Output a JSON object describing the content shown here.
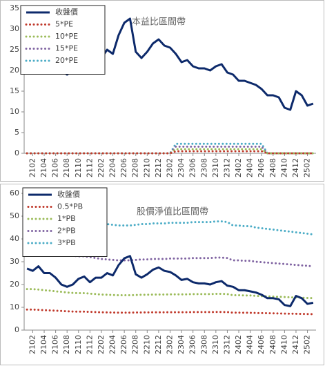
{
  "chart_data": [
    {
      "type": "line",
      "title": "本益比區間帶",
      "categories": [
        null,
        "2102",
        null,
        "2104",
        null,
        "2106",
        null,
        "2108",
        null,
        "2110",
        null,
        "2112",
        null,
        "2202",
        null,
        "2204",
        null,
        "2206",
        null,
        "2208",
        null,
        "2210",
        null,
        "2212",
        null,
        "2302",
        null,
        "2304",
        null,
        "2306",
        null,
        "2308",
        null,
        "2310",
        null,
        "2312",
        null,
        "2402",
        null,
        "2404",
        null,
        "2406",
        null,
        "2408",
        null,
        "2410",
        null,
        "2412",
        null,
        "2502",
        null
      ],
      "ylim": [
        0,
        35
      ],
      "yticks": [
        0,
        5,
        10,
        15,
        20,
        25,
        30,
        35
      ],
      "series": [
        {
          "name": "收盤價",
          "color": "#0d2a6b",
          "style": "solid",
          "values": [
            27,
            26,
            28,
            25,
            25,
            23,
            20,
            19,
            20,
            22.5,
            23.5,
            21,
            23,
            23,
            25,
            24,
            28.5,
            31.5,
            32.5,
            24.5,
            23,
            24.5,
            26.5,
            27.5,
            26,
            25.5,
            24,
            22,
            22.5,
            21,
            20.5,
            20.5,
            20,
            21,
            21.5,
            19.5,
            19,
            17.5,
            17.5,
            17,
            16.5,
            15.5,
            14,
            14,
            13.5,
            11,
            10.5,
            15,
            14,
            11.5,
            12
          ]
        },
        {
          "name": "5*PE",
          "color": "#c0392b",
          "style": "dotted",
          "values": [
            0,
            0,
            0,
            0,
            0,
            0,
            0,
            0,
            0,
            0,
            0,
            0,
            0,
            0,
            0,
            0,
            0,
            0,
            0,
            0,
            0,
            0,
            0,
            0,
            0,
            0,
            0.5,
            0.5,
            0.5,
            0.5,
            0.5,
            0.5,
            0.5,
            0.5,
            0.5,
            0.5,
            0.5,
            0.5,
            0.5,
            0.5,
            0.5,
            0.5,
            0,
            0,
            0,
            0,
            0,
            0,
            0,
            0,
            0
          ]
        },
        {
          "name": "10*PE",
          "color": "#9bbb59",
          "style": "dotted",
          "values": [
            0,
            0,
            0,
            0,
            0,
            0,
            0,
            0,
            0,
            0,
            0,
            0,
            0,
            0,
            0,
            0,
            0,
            0,
            0,
            0,
            0,
            0,
            0,
            0,
            0,
            0,
            1,
            1,
            1,
            1,
            1,
            1,
            1,
            1,
            1,
            1,
            1,
            1,
            1,
            1,
            1,
            1,
            0,
            0,
            0,
            0,
            0,
            0,
            0,
            0,
            0
          ]
        },
        {
          "name": "15*PE",
          "color": "#8064a2",
          "style": "dotted",
          "values": [
            0,
            0,
            0,
            0,
            0,
            0,
            0,
            0,
            0,
            0,
            0,
            0,
            0,
            0,
            0,
            0,
            0,
            0,
            0,
            0,
            0,
            0,
            0,
            0,
            0,
            0,
            1.6,
            1.6,
            1.6,
            1.6,
            1.6,
            1.6,
            1.6,
            1.6,
            1.6,
            1.6,
            1.6,
            1.6,
            1.6,
            1.6,
            1.6,
            1.6,
            0,
            0,
            0,
            0,
            0,
            0,
            0,
            0,
            0
          ]
        },
        {
          "name": "20*PE",
          "color": "#4bacc6",
          "style": "dotted",
          "values": [
            0,
            0,
            0,
            0,
            0,
            0,
            0,
            0,
            0,
            0,
            0,
            0,
            0,
            0,
            0,
            0,
            0,
            0,
            0,
            0,
            0,
            0,
            0,
            0,
            0,
            0,
            2.3,
            2.3,
            2.3,
            2.3,
            2.3,
            2.3,
            2.3,
            2.3,
            2.3,
            2.3,
            2.3,
            2.3,
            2.3,
            2.3,
            2.3,
            2.3,
            0,
            0,
            0,
            0,
            0,
            0,
            0,
            0,
            0
          ]
        }
      ]
    },
    {
      "type": "line",
      "title": "股價淨值比區間帶",
      "categories": [
        null,
        "2102",
        null,
        "2104",
        null,
        "2106",
        null,
        "2108",
        null,
        "2110",
        null,
        "2112",
        null,
        "2202",
        null,
        "2204",
        null,
        "2206",
        null,
        "2208",
        null,
        "2210",
        null,
        "2212",
        null,
        "2302",
        null,
        "2304",
        null,
        "2306",
        null,
        "2308",
        null,
        "2310",
        null,
        "2312",
        null,
        "2402",
        null,
        "2404",
        null,
        "2406",
        null,
        "2408",
        null,
        "2410",
        null,
        "2412",
        null,
        "2502",
        null
      ],
      "ylim": [
        0,
        60
      ],
      "yticks": [
        0,
        10,
        20,
        30,
        40,
        50,
        60
      ],
      "series": [
        {
          "name": "收盤價",
          "color": "#0d2a6b",
          "style": "solid",
          "values": [
            27,
            26,
            28,
            25,
            25,
            23,
            20,
            19,
            20,
            22.5,
            23.5,
            21,
            23,
            23,
            25,
            24,
            28.5,
            31.5,
            32.5,
            24.5,
            23,
            24.5,
            26.5,
            27.5,
            26,
            25.5,
            24,
            22,
            22.5,
            21,
            20.5,
            20.5,
            20,
            21,
            21.5,
            19.5,
            19,
            17.5,
            17.5,
            17,
            16.5,
            15.5,
            14,
            14,
            13.5,
            11,
            10.5,
            15,
            14,
            11.5,
            12
          ]
        },
        {
          "name": "0.5*PB",
          "color": "#c0392b",
          "style": "dotted",
          "values": [
            9,
            9,
            8.9,
            8.75,
            8.65,
            8.5,
            8.4,
            8.25,
            8.15,
            8.1,
            8.1,
            8,
            7.9,
            7.8,
            7.75,
            7.7,
            7.65,
            7.65,
            7.65,
            7.7,
            7.75,
            7.75,
            7.8,
            7.8,
            7.8,
            7.85,
            7.85,
            7.85,
            7.85,
            7.9,
            7.9,
            7.9,
            7.9,
            7.95,
            7.95,
            7.9,
            7.65,
            7.65,
            7.6,
            7.6,
            7.5,
            7.45,
            7.4,
            7.35,
            7.3,
            7.25,
            7.2,
            7.15,
            7.1,
            7.05,
            7
          ]
        },
        {
          "name": "1*PB",
          "color": "#9bbb59",
          "style": "dotted",
          "values": [
            18,
            18,
            17.8,
            17.5,
            17.3,
            17,
            16.8,
            16.5,
            16.3,
            16.2,
            16.2,
            16,
            15.8,
            15.6,
            15.5,
            15.4,
            15.3,
            15.3,
            15.3,
            15.4,
            15.5,
            15.5,
            15.6,
            15.6,
            15.6,
            15.7,
            15.7,
            15.7,
            15.7,
            15.8,
            15.8,
            15.8,
            15.8,
            15.9,
            15.9,
            15.8,
            15.3,
            15.3,
            15.2,
            15.2,
            15,
            14.9,
            14.8,
            14.7,
            14.6,
            14.5,
            14.4,
            14.3,
            14.2,
            14.1,
            14
          ]
        },
        {
          "name": "2*PB",
          "color": "#8064a2",
          "style": "dotted",
          "values": [
            36,
            36,
            35.6,
            35,
            34.6,
            34,
            33.6,
            33,
            32.6,
            32.4,
            32.4,
            32,
            31.6,
            31.2,
            31,
            30.8,
            30.6,
            30.6,
            30.6,
            30.8,
            31,
            31,
            31.2,
            31.2,
            31.2,
            31.4,
            31.4,
            31.4,
            31.4,
            31.6,
            31.6,
            31.6,
            31.6,
            31.8,
            31.8,
            31.6,
            30.6,
            30.6,
            30.4,
            30.4,
            30,
            29.8,
            29.6,
            29.4,
            29.2,
            29,
            28.8,
            28.6,
            28.4,
            28.2,
            28
          ]
        },
        {
          "name": "3*PB",
          "color": "#4bacc6",
          "style": "dotted",
          "values": [
            54,
            54,
            53.4,
            52.5,
            51.9,
            51,
            50.4,
            49.5,
            48.9,
            48.6,
            48.6,
            48,
            47.4,
            46.8,
            46.5,
            46.2,
            45.9,
            45.9,
            45.9,
            46.2,
            46.5,
            46.5,
            46.8,
            46.8,
            46.8,
            47.1,
            47.1,
            47.1,
            47.1,
            47.4,
            47.4,
            47.4,
            47.4,
            47.7,
            47.7,
            47.4,
            45.9,
            45.9,
            45.6,
            45.6,
            45,
            44.7,
            44.4,
            44.1,
            43.8,
            43.5,
            43.2,
            42.9,
            42.6,
            42.3,
            42
          ]
        }
      ]
    }
  ]
}
